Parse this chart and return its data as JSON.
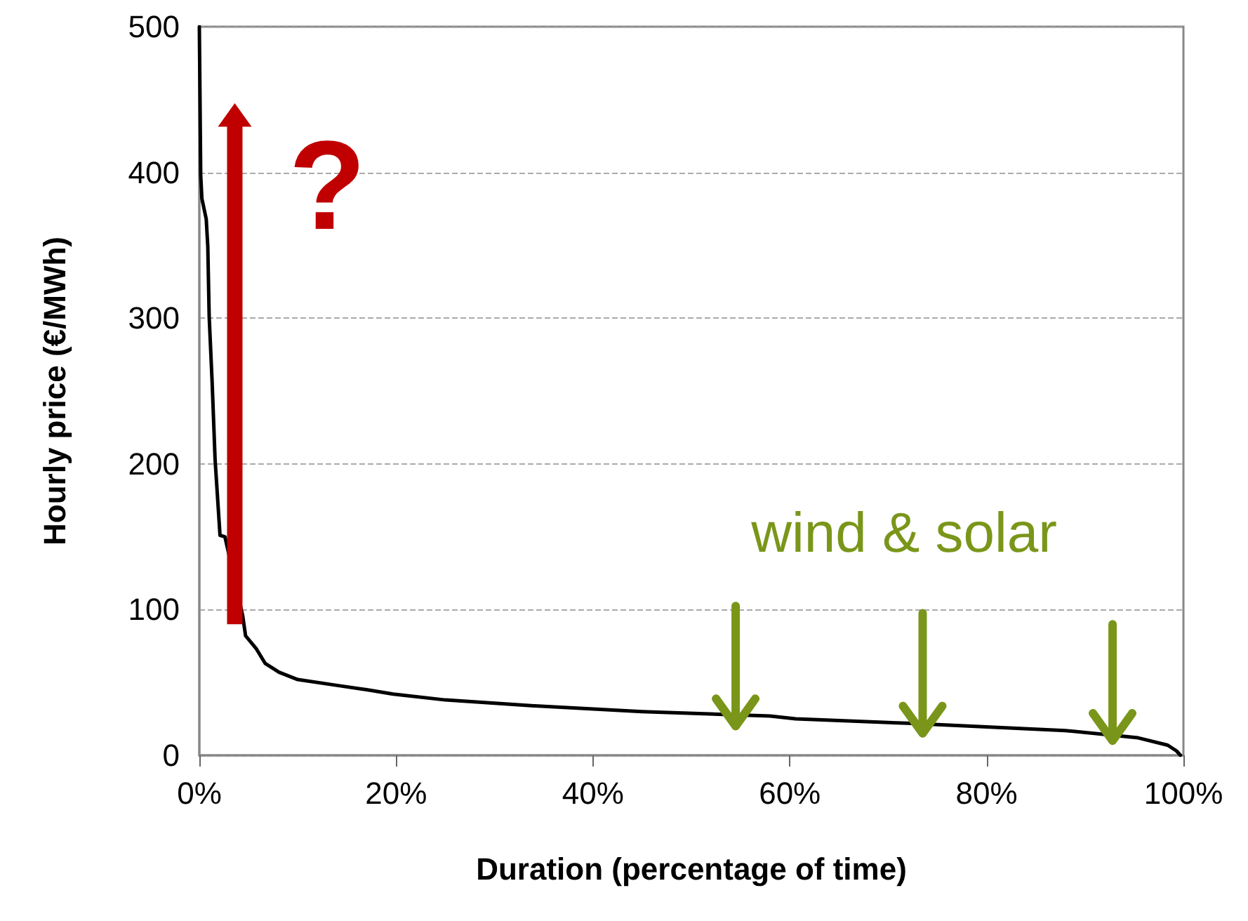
{
  "chart_data": {
    "type": "line",
    "xlabel": "Duration (percentage of time)",
    "ylabel": "Hourly price (€/MWh)",
    "x": [
      0,
      0.14,
      0.26,
      0.7,
      0.86,
      1.0,
      1.3,
      1.6,
      2.1,
      2.6,
      2.9,
      4.4,
      4.7,
      5.8,
      6.7,
      8.1,
      10,
      14,
      17,
      19.7,
      25,
      34,
      45,
      58,
      60.6,
      72,
      88,
      95.4,
      98.4,
      99.3,
      99.7
    ],
    "series": [
      {
        "color": "#000000",
        "values": [
          500,
          398,
          382,
          368,
          349,
          301,
          256,
          203,
          151,
          150,
          null,
          96,
          82,
          73,
          63,
          57,
          52,
          48,
          45,
          42,
          38,
          34,
          30,
          27,
          25,
          22,
          17,
          12,
          7,
          3,
          0
        ]
      }
    ],
    "xlim": [
      0,
      100
    ],
    "ylim": [
      0,
      500
    ],
    "xticks": [
      {
        "value": 0,
        "label": "0%"
      },
      {
        "value": 20,
        "label": "20%"
      },
      {
        "value": 40,
        "label": "40%"
      },
      {
        "value": 60,
        "label": "60%"
      },
      {
        "value": 80,
        "label": "80%"
      },
      {
        "value": 100,
        "label": "100%"
      }
    ],
    "yticks": [
      0,
      100,
      200,
      300,
      400,
      500
    ],
    "grid": "y",
    "marker": "none",
    "line_style": "solid",
    "annotations": [
      "?",
      {
        "text": "wind & solar",
        "x": 54.5,
        "y": 27
      }
    ]
  }
}
